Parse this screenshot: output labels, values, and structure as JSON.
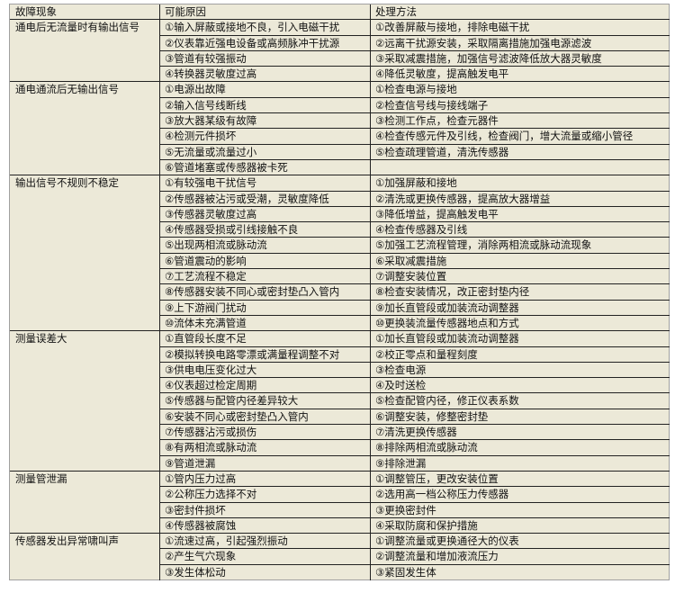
{
  "header": {
    "symptom": "故障现象",
    "cause": "可能原因",
    "remedy": "处理方法"
  },
  "groups": [
    {
      "symptom": "通电后无流量时有输出信号",
      "rows": [
        {
          "cause": "①输入屏蔽或接地不良，引入电磁干扰",
          "remedy": "①改善屏蔽与接地，排除电磁干扰"
        },
        {
          "cause": "②仪表靠近强电设备或高频脉冲干扰源",
          "remedy": "②远离干扰源安装，采取隔离措施加强电源滤波"
        },
        {
          "cause": "③管道有较强振动",
          "remedy": "③采取减震措施，加强信号滤波降低放大器灵敏度"
        },
        {
          "cause": "④转换器灵敏度过高",
          "remedy": "④降低灵敏度，提高触发电平"
        }
      ]
    },
    {
      "symptom": "通电通流后无输出信号",
      "rows": [
        {
          "cause": "①电源出故障",
          "remedy": "①检查电源与接地"
        },
        {
          "cause": "②输入信号线断线",
          "remedy": "②检查信号线与接线端子"
        },
        {
          "cause": "③放大器某级有故障",
          "remedy": "③检测工作点，检查元器件"
        },
        {
          "cause": "④检测元件损坏",
          "remedy": "④检查传感元件及引线，检查阀门，增大流量或缩小管径"
        },
        {
          "cause": "⑤无流量或流量过小",
          "remedy": "⑤检查疏理管道，清洗传感器"
        },
        {
          "cause": "⑥管道堵塞或传感器被卡死",
          "remedy": ""
        }
      ]
    },
    {
      "symptom": "输出信号不规则不稳定",
      "rows": [
        {
          "cause": "①有较强电干扰信号",
          "remedy": "①加强屏蔽和接地"
        },
        {
          "cause": "②传感器被沾污或受潮，灵敏度降低",
          "remedy": "②清洗或更换传感器，提高放大器增益"
        },
        {
          "cause": "③传感器灵敏度过高",
          "remedy": "③降低增益，提高触发电平"
        },
        {
          "cause": "④传感器受损或引线接触不良",
          "remedy": "④检查传感器及引线"
        },
        {
          "cause": "⑤出现两相流或脉动流",
          "remedy": "⑤加强工艺流程管理，消除两相流或脉动流现象"
        },
        {
          "cause": "⑥管道震动的影响",
          "remedy": "⑥采取减震措施"
        },
        {
          "cause": "⑦工艺流程不稳定",
          "remedy": "⑦调整安装位置"
        },
        {
          "cause": "⑧传感器安装不同心或密封垫凸入管内",
          "remedy": "⑧检查安装情况，改正密封垫内径"
        },
        {
          "cause": "⑨上下游阀门扰动",
          "remedy": "⑨加长直管段或加装流动调整器"
        },
        {
          "cause": "⑩流体未充满管道",
          "remedy": "⑩更换装流量传感器地点和方式"
        }
      ]
    },
    {
      "symptom": "测量误差大",
      "rows": [
        {
          "cause": "①直管段长度不足",
          "remedy": "①加长直管段或加装流动调整器"
        },
        {
          "cause": "②模拟转换电路零漂或满量程调整不对",
          "remedy": "②校正零点和量程刻度"
        },
        {
          "cause": "③供电电压变化过大",
          "remedy": "③检查电源"
        },
        {
          "cause": "④仪表超过检定周期",
          "remedy": "④及时送检"
        },
        {
          "cause": "⑤传感器与配管内径差异较大",
          "remedy": "⑤检查配管内径，修正仪表系数"
        },
        {
          "cause": "⑥安装不同心或密封垫凸入管内",
          "remedy": "⑥调整安装，修整密封垫"
        },
        {
          "cause": "⑦传感器沾污或损伤",
          "remedy": "⑦清洗更换传感器"
        },
        {
          "cause": "⑧有两相流或脉动流",
          "remedy": "⑧排除两相流或脉动流"
        },
        {
          "cause": "⑨管道泄漏",
          "remedy": "⑨排除泄漏"
        }
      ]
    },
    {
      "symptom": "测量管泄漏",
      "rows": [
        {
          "cause": "①管内压力过高",
          "remedy": "①调整管压，更改安装位置"
        },
        {
          "cause": "②公称压力选择不对",
          "remedy": "②选用高一档公称压力传感器"
        },
        {
          "cause": "③密封件损坏",
          "remedy": "③更换密封件"
        },
        {
          "cause": "④传感器被腐蚀",
          "remedy": "④采取防腐和保护措施"
        }
      ]
    },
    {
      "symptom": "传感器发出异常啸叫声",
      "rows": [
        {
          "cause": "①流速过高，引起强烈振动",
          "remedy": "①调整流量或更换通径大的仪表"
        },
        {
          "cause": "②产生气穴现象",
          "remedy": "②调整流量和增加液流压力"
        },
        {
          "cause": "③发生体松动",
          "remedy": "③紧固发生体"
        }
      ]
    }
  ]
}
